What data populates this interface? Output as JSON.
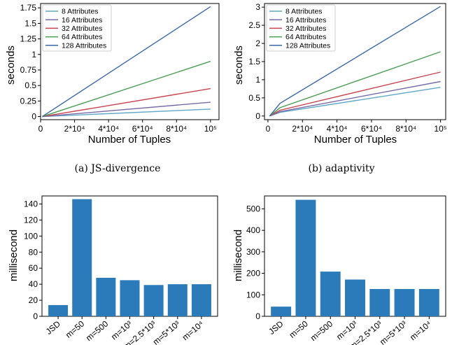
{
  "panels": [
    {
      "caption": "(a)  JS-divergence",
      "chart_data": {
        "type": "line",
        "xlabel": "Number of Tuples",
        "ylabel": "seconds",
        "xlim": [
          0,
          105000
        ],
        "ylim": [
          -0.05,
          1.82
        ],
        "yticks": [
          0,
          0.25,
          0.5,
          0.75,
          1,
          1.25,
          1.5,
          1.75
        ],
        "ytick_labels": [
          "0",
          "0.25",
          "0.5",
          "0.75",
          "1",
          "1.25",
          "1.5",
          "1.75"
        ],
        "xticks": [
          0,
          20000,
          40000,
          60000,
          80000,
          100000
        ],
        "xtick_labels": [
          "0",
          "2*10⁴",
          "4*10⁴",
          "6*10⁴",
          "8*10⁴",
          "10⁵"
        ],
        "legend_position": "top-left",
        "series": [
          {
            "name": "8 Attributes",
            "color": "#5fa8c8",
            "x": [
              1000,
              100000
            ],
            "y": [
              0.0,
              0.12
            ]
          },
          {
            "name": "16 Attributes",
            "color": "#7a6aa8",
            "x": [
              1000,
              100000
            ],
            "y": [
              0.0,
              0.23
            ]
          },
          {
            "name": "32 Attributes",
            "color": "#c9434f",
            "x": [
              1000,
              100000
            ],
            "y": [
              0.0,
              0.45
            ]
          },
          {
            "name": "64 Attributes",
            "color": "#4a9e54",
            "x": [
              1000,
              100000
            ],
            "y": [
              0.0,
              0.89
            ]
          },
          {
            "name": "128 Attributes",
            "color": "#3a67a8",
            "x": [
              1000,
              100000
            ],
            "y": [
              0.0,
              1.77
            ]
          }
        ]
      }
    },
    {
      "caption": "(b)  adaptivity",
      "chart_data": {
        "type": "line",
        "xlabel": "Number of Tuples",
        "ylabel": "seconds",
        "xlim": [
          -2000,
          103000
        ],
        "ylim": [
          -0.1,
          3.1
        ],
        "yticks": [
          0,
          0.5,
          1,
          1.5,
          2,
          2.5,
          3
        ],
        "ytick_labels": [
          "0",
          "0.5",
          "1",
          "1.5",
          "2",
          "2.5",
          "3"
        ],
        "xticks": [
          0,
          20000,
          40000,
          60000,
          80000,
          100000
        ],
        "xtick_labels": [
          "0",
          "2*10⁴",
          "4*10⁴",
          "6*10⁴",
          "8*10⁴",
          "10⁵"
        ],
        "legend_position": "top-left",
        "series": [
          {
            "name": "8 Attributes",
            "color": "#5fa8c8",
            "x": [
              1000,
              7000,
              100000
            ],
            "y": [
              0.0,
              0.1,
              0.79
            ]
          },
          {
            "name": "16 Attributes",
            "color": "#7a6aa8",
            "x": [
              1000,
              7000,
              100000
            ],
            "y": [
              0.0,
              0.12,
              0.95
            ]
          },
          {
            "name": "32 Attributes",
            "color": "#c9434f",
            "x": [
              1000,
              7000,
              100000
            ],
            "y": [
              0.0,
              0.16,
              1.21
            ]
          },
          {
            "name": "64 Attributes",
            "color": "#4a9e54",
            "x": [
              1000,
              7000,
              100000
            ],
            "y": [
              0.0,
              0.23,
              1.77
            ]
          },
          {
            "name": "128 Attributes",
            "color": "#3a67a8",
            "x": [
              1000,
              7000,
              100000
            ],
            "y": [
              0.0,
              0.35,
              3.02
            ]
          }
        ]
      }
    },
    {
      "caption": "",
      "chart_data": {
        "type": "bar",
        "ylabel": "millisecond",
        "xlabel": "",
        "categories": [
          "JSD",
          "m=50",
          "m=500",
          "m=10³",
          "m=2.5*10³",
          "m=5*10³",
          "m=10⁴"
        ],
        "values": [
          14,
          146,
          48,
          45,
          39,
          40,
          40
        ],
        "ylim": [
          0,
          150
        ],
        "yticks": [
          0,
          20,
          40,
          60,
          80,
          100,
          120,
          140
        ],
        "color": "#2b7bba"
      }
    },
    {
      "caption": "",
      "chart_data": {
        "type": "bar",
        "ylabel": "millisecond",
        "xlabel": "",
        "categories": [
          "JSD",
          "m=50",
          "m=500",
          "m=10³",
          "m=2.5*10³",
          "m=5*10³",
          "m=10⁴"
        ],
        "values": [
          45,
          542,
          208,
          171,
          127,
          127,
          127
        ],
        "ylim": [
          0,
          560
        ],
        "yticks": [
          0,
          100,
          200,
          300,
          400,
          500
        ],
        "color": "#2b7bba"
      }
    }
  ]
}
